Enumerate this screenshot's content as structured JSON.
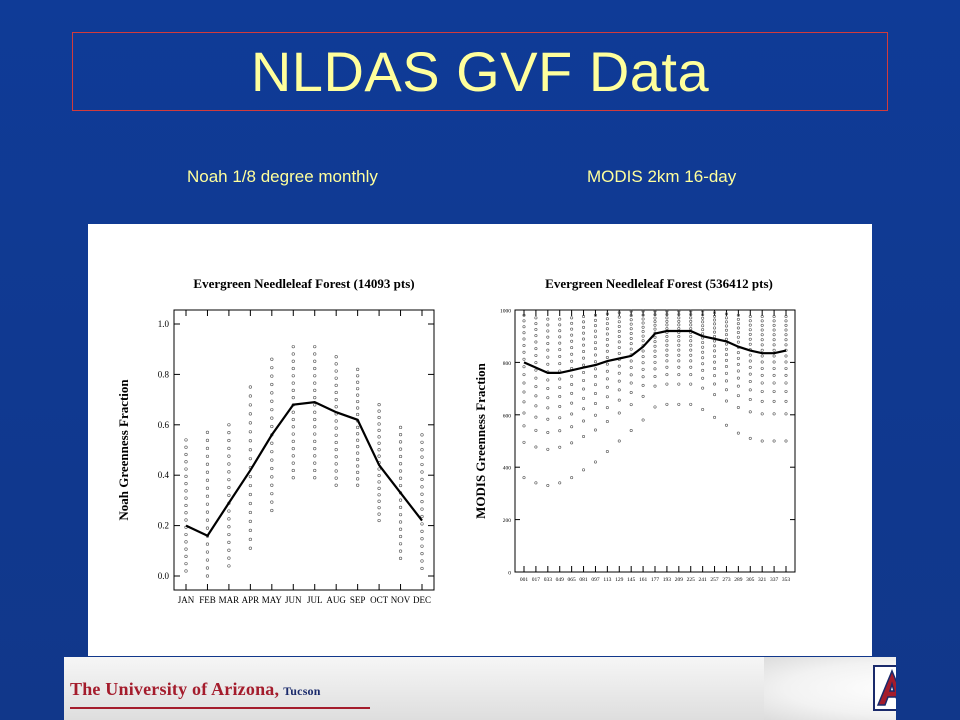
{
  "slide": {
    "title": "NLDAS GVF Data",
    "subtitle_left": "Noah 1/8 degree monthly",
    "subtitle_right": "MODIS 2km 16-day"
  },
  "footer": {
    "institution": "The University of Arizona,",
    "location": "Tucson",
    "logo_letter": "A",
    "accent_color": "#a41c2c",
    "logo_blue": "#1a2a6b"
  },
  "colors": {
    "background": "#123a8e",
    "title_text": "#ffff9c",
    "title_border": "#d23b3b"
  },
  "chart_data": [
    {
      "type": "line",
      "title": "Evergreen Needleleaf Forest (14093 pts)",
      "xlabel": "",
      "ylabel": "Noah Greenness Fraction",
      "categories": [
        "JAN",
        "FEB",
        "MAR",
        "APR",
        "MAY",
        "JUN",
        "JUL",
        "AUG",
        "SEP",
        "OCT",
        "NOV",
        "DEC"
      ],
      "series": [
        {
          "values": [
            0.2,
            0.16,
            0.29,
            0.42,
            0.56,
            0.68,
            0.69,
            0.65,
            0.62,
            0.44,
            0.33,
            0.22
          ]
        }
      ],
      "scatter_ranges": [
        [
          0.02,
          0.54
        ],
        [
          0.0,
          0.57
        ],
        [
          0.04,
          0.6
        ],
        [
          0.11,
          0.75
        ],
        [
          0.26,
          0.86
        ],
        [
          0.39,
          0.91
        ],
        [
          0.39,
          0.91
        ],
        [
          0.36,
          0.87
        ],
        [
          0.36,
          0.82
        ],
        [
          0.22,
          0.68
        ],
        [
          0.07,
          0.59
        ],
        [
          0.03,
          0.56
        ]
      ],
      "ylim": [
        0,
        1.0
      ],
      "yticks": [
        0.0,
        0.2,
        0.4,
        0.6,
        0.8,
        1.0
      ],
      "grid": false
    },
    {
      "type": "line",
      "title": "Evergreen Needleleaf Forest (536412 pts)",
      "xlabel": "",
      "ylabel": "MODIS Greenness Fraction",
      "x": [
        "001",
        "017",
        "033",
        "049",
        "065",
        "081",
        "097",
        "113",
        "129",
        "145",
        "161",
        "177",
        "193",
        "209",
        "225",
        "241",
        "257",
        "273",
        "289",
        "305",
        "321",
        "337",
        "353"
      ],
      "series": [
        {
          "values": [
            800,
            780,
            760,
            760,
            770,
            780,
            790,
            805,
            815,
            825,
            860,
            910,
            920,
            920,
            920,
            900,
            890,
            880,
            860,
            845,
            835,
            835,
            845
          ]
        }
      ],
      "scatter_ranges": [
        [
          360,
          980
        ],
        [
          340,
          970
        ],
        [
          330,
          965
        ],
        [
          340,
          965
        ],
        [
          360,
          970
        ],
        [
          390,
          975
        ],
        [
          420,
          980
        ],
        [
          460,
          985
        ],
        [
          500,
          990
        ],
        [
          540,
          995
        ],
        [
          580,
          995
        ],
        [
          630,
          995
        ],
        [
          640,
          995
        ],
        [
          640,
          995
        ],
        [
          640,
          995
        ],
        [
          620,
          995
        ],
        [
          590,
          990
        ],
        [
          560,
          985
        ],
        [
          530,
          980
        ],
        [
          510,
          975
        ],
        [
          500,
          975
        ],
        [
          500,
          975
        ],
        [
          500,
          975
        ]
      ],
      "ylim": [
        0,
        1000
      ],
      "yticks": [
        0,
        200,
        400,
        600,
        800,
        1000
      ],
      "grid": false
    }
  ]
}
